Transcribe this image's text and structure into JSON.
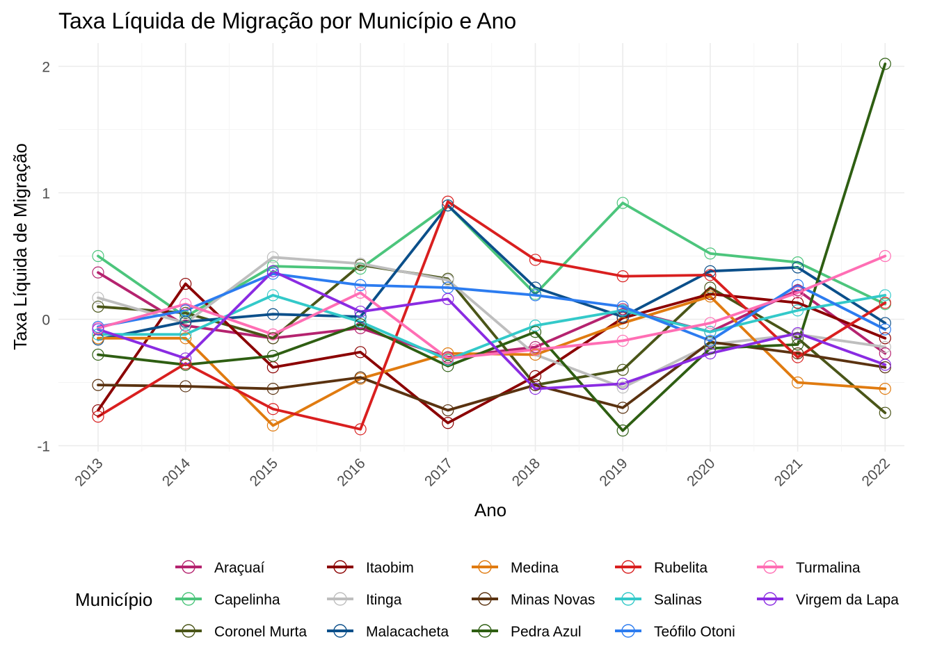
{
  "chart_data": {
    "type": "line",
    "title": "Taxa Líquida de Migração por Município e Ano",
    "xlabel": "Ano",
    "ylabel": "Taxa Líquida de Migração",
    "x": [
      "2013",
      "2014",
      "2015",
      "2016",
      "2017",
      "2018",
      "2019",
      "2020",
      "2021",
      "2022"
    ],
    "ylim": [
      -1.1,
      2.15
    ],
    "yticks": [
      -1,
      0,
      1,
      2
    ],
    "grid": true,
    "legend_title": "Município",
    "legend_position": "bottom",
    "series": [
      {
        "name": "Araçuaí",
        "color": "#B5236F",
        "values": [
          0.37,
          -0.05,
          -0.15,
          -0.07,
          -0.3,
          -0.22,
          0.08,
          -0.1,
          0.23,
          -0.27
        ]
      },
      {
        "name": "Capelinha",
        "color": "#4CC57C",
        "values": [
          0.5,
          0.02,
          0.42,
          0.4,
          0.9,
          0.2,
          0.92,
          0.52,
          0.45,
          0.12
        ]
      },
      {
        "name": "Coronel Murta",
        "color": "#4A5518",
        "values": [
          0.1,
          0.05,
          -0.15,
          0.43,
          0.32,
          -0.52,
          -0.4,
          0.25,
          -0.15,
          -0.74
        ]
      },
      {
        "name": "Itaobim",
        "color": "#8B0000",
        "values": [
          -0.72,
          0.28,
          -0.38,
          -0.26,
          -0.82,
          -0.45,
          0.01,
          0.2,
          0.13,
          -0.15
        ]
      },
      {
        "name": "Itinga",
        "color": "#BEBEBE",
        "values": [
          0.17,
          -0.03,
          0.49,
          0.44,
          0.31,
          -0.28,
          -0.54,
          -0.2,
          -0.12,
          -0.22
        ]
      },
      {
        "name": "Malacacheta",
        "color": "#0B4F8A",
        "values": [
          -0.16,
          -0.02,
          0.04,
          0.02,
          0.9,
          0.25,
          0.02,
          0.38,
          0.41,
          -0.03
        ]
      },
      {
        "name": "Medina",
        "color": "#E07B10",
        "values": [
          -0.15,
          -0.15,
          -0.84,
          -0.47,
          -0.27,
          -0.28,
          -0.03,
          0.18,
          -0.5,
          -0.55
        ]
      },
      {
        "name": "Minas Novas",
        "color": "#5A3210",
        "values": [
          -0.52,
          -0.53,
          -0.55,
          -0.46,
          -0.72,
          -0.52,
          -0.7,
          -0.18,
          -0.27,
          -0.38
        ]
      },
      {
        "name": "Pedra Azul",
        "color": "#2E5E12",
        "values": [
          -0.28,
          -0.36,
          -0.29,
          -0.04,
          -0.37,
          -0.1,
          -0.88,
          -0.23,
          -0.2,
          2.02
        ]
      },
      {
        "name": "Rubelita",
        "color": "#D91F1F",
        "values": [
          -0.77,
          -0.35,
          -0.71,
          -0.87,
          0.93,
          0.47,
          0.34,
          0.35,
          -0.3,
          0.13
        ]
      },
      {
        "name": "Salinas",
        "color": "#33C9C9",
        "values": [
          -0.12,
          -0.12,
          0.19,
          -0.02,
          -0.32,
          -0.05,
          0.07,
          -0.1,
          0.07,
          0.19
        ]
      },
      {
        "name": "Teófilo Otoni",
        "color": "#2C7CF0",
        "values": [
          -0.06,
          0.07,
          0.36,
          0.27,
          0.25,
          0.19,
          0.1,
          -0.17,
          0.27,
          -0.08
        ]
      },
      {
        "name": "Turmalina",
        "color": "#FF6EB4",
        "values": [
          -0.07,
          0.12,
          -0.12,
          0.21,
          -0.31,
          -0.24,
          -0.17,
          -0.03,
          0.21,
          0.5
        ]
      },
      {
        "name": "Virgem da Lapa",
        "color": "#8A2BE2",
        "values": [
          -0.08,
          -0.31,
          0.38,
          0.06,
          0.16,
          -0.55,
          -0.51,
          -0.27,
          -0.11,
          -0.36
        ]
      }
    ]
  }
}
